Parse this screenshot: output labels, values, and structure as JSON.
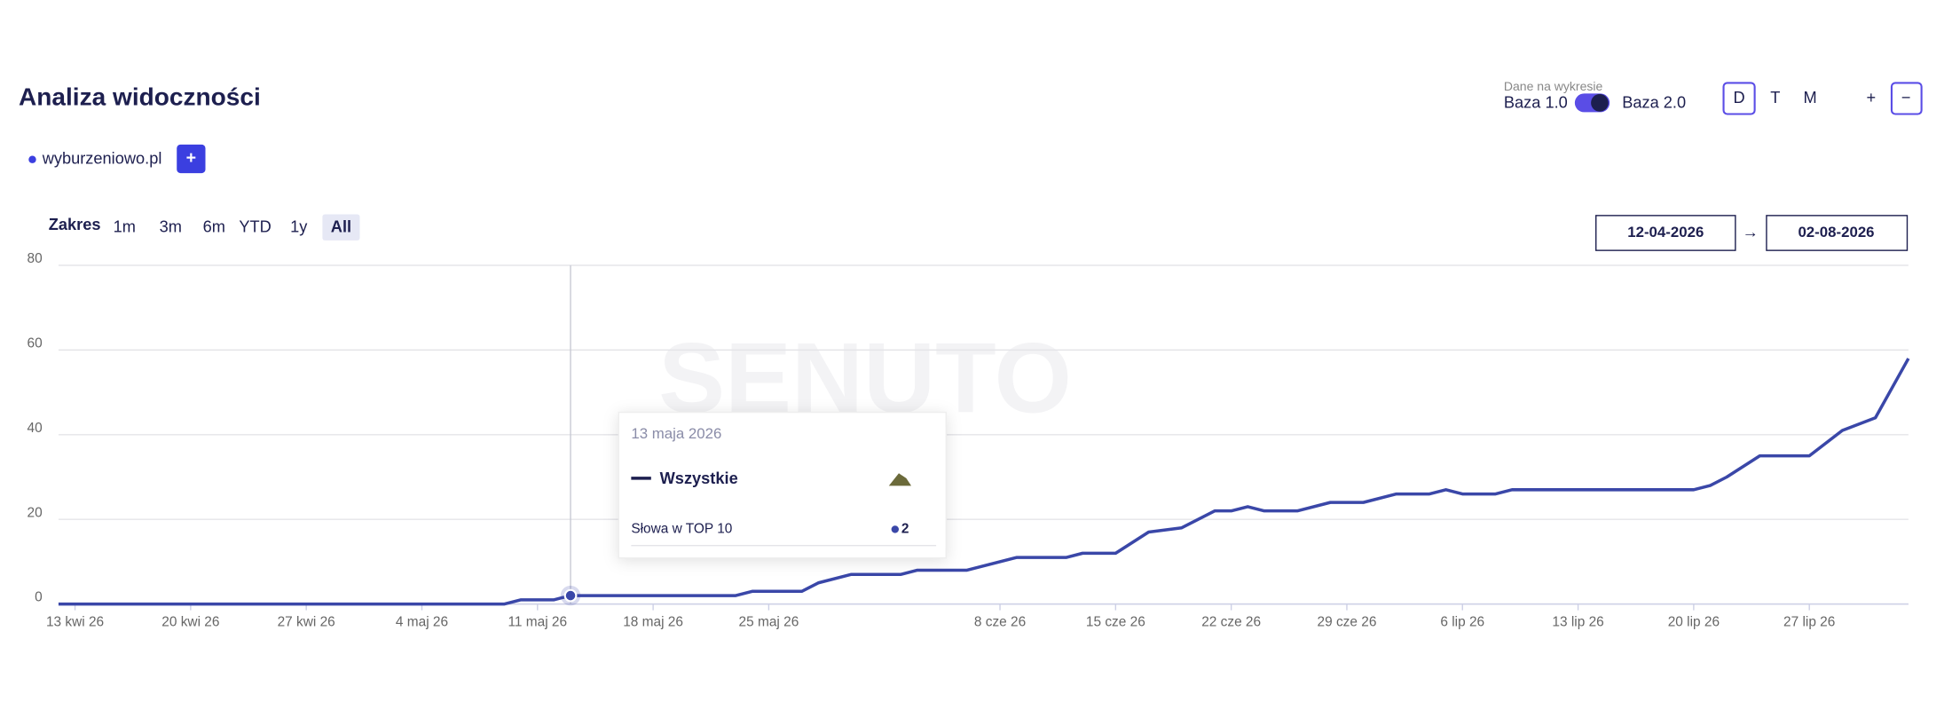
{
  "header": {
    "title": "Analiza widoczności",
    "data_label": "Dane na wykresie",
    "base_left": "Baza 1.0",
    "base_right": "Baza 2.0",
    "granularity": [
      "D",
      "T",
      "M"
    ],
    "zoom": [
      "+",
      "−"
    ]
  },
  "domain": "wyburzeniowo.pl",
  "add_button": "+",
  "range": {
    "label": "Zakres",
    "options": [
      "1m",
      "3m",
      "6m",
      "YTD",
      "1y",
      "All"
    ],
    "active": 5,
    "from": "12-04-2026",
    "arrow": "→",
    "to": "02-08-2026"
  },
  "watermark": "SENUTO",
  "tooltip": {
    "date": "13 maja 2026",
    "metric": "Słowa w TOP 10"
  },
  "chart_data": {
    "type": "line",
    "x": [
      "2026-04-12",
      "2026-05-09",
      "2026-05-10",
      "2026-05-12",
      "2026-05-13",
      "2026-05-23",
      "2026-05-24",
      "2026-05-27",
      "2026-05-28",
      "2026-05-30",
      "2026-06-02",
      "2026-06-03",
      "2026-06-06",
      "2026-06-09",
      "2026-06-12",
      "2026-06-13",
      "2026-06-15",
      "2026-06-17",
      "2026-06-19",
      "2026-06-21",
      "2026-06-22",
      "2026-06-23",
      "2026-06-24",
      "2026-06-26",
      "2026-06-28",
      "2026-06-30",
      "2026-07-02",
      "2026-07-04",
      "2026-07-05",
      "2026-07-06",
      "2026-07-08",
      "2026-07-09",
      "2026-07-20",
      "2026-07-21",
      "2026-07-22",
      "2026-07-24",
      "2026-07-27",
      "2026-07-29",
      "2026-07-31",
      "2026-08-02"
    ],
    "series": [
      {
        "name": "Wszystkie",
        "color": "#3a47a8",
        "values": [
          0,
          0,
          1,
          1,
          2,
          2,
          3,
          3,
          5,
          7,
          7,
          8,
          8,
          11,
          11,
          12,
          12,
          17,
          18,
          22,
          22,
          23,
          22,
          22,
          24,
          24,
          26,
          26,
          27,
          26,
          26,
          27,
          27,
          28,
          30,
          35,
          35,
          41,
          44,
          58
        ]
      }
    ],
    "highlight_index": 4,
    "xlim": [
      "2026-04-12",
      "2026-08-02"
    ],
    "xticks": [
      {
        "value": "2026-04-13",
        "label": "13 kwi 26"
      },
      {
        "value": "2026-04-20",
        "label": "20 kwi 26"
      },
      {
        "value": "2026-04-27",
        "label": "27 kwi 26"
      },
      {
        "value": "2026-05-04",
        "label": "4 maj 26"
      },
      {
        "value": "2026-05-11",
        "label": "11 maj 26"
      },
      {
        "value": "2026-05-18",
        "label": "18 maj 26"
      },
      {
        "value": "2026-05-25",
        "label": "25 maj 26"
      },
      {
        "value": "2026-06-08",
        "label": "8 cze 26"
      },
      {
        "value": "2026-06-15",
        "label": "15 cze 26"
      },
      {
        "value": "2026-06-22",
        "label": "22 cze 26"
      },
      {
        "value": "2026-06-29",
        "label": "29 cze 26"
      },
      {
        "value": "2026-07-06",
        "label": "6 lip 26"
      },
      {
        "value": "2026-07-13",
        "label": "13 lip 26"
      },
      {
        "value": "2026-07-20",
        "label": "20 lip 26"
      },
      {
        "value": "2026-07-27",
        "label": "27 lip 26"
      }
    ],
    "ylim": [
      0,
      80
    ],
    "yticks": [
      0,
      20,
      40,
      60,
      80
    ],
    "grid": true
  }
}
